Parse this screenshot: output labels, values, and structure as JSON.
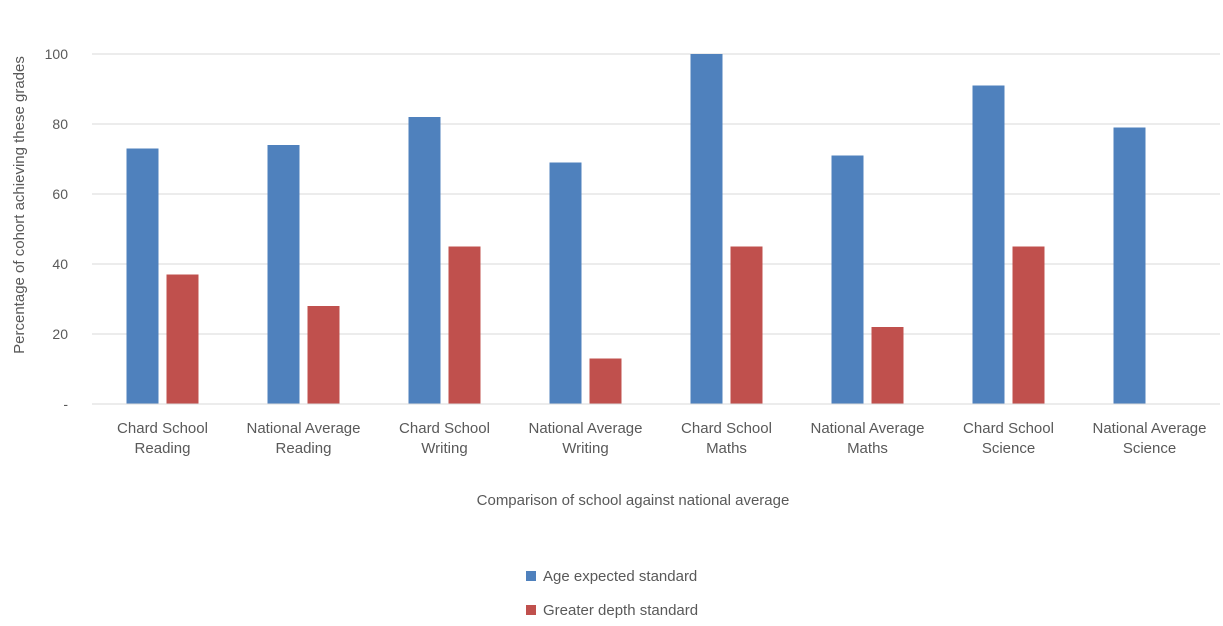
{
  "chart_data": {
    "type": "bar",
    "categories": [
      [
        "Chard School",
        "Reading"
      ],
      [
        "National Average",
        "Reading"
      ],
      [
        "Chard School",
        "Writing"
      ],
      [
        "National Average",
        "Writing"
      ],
      [
        "Chard School",
        "Maths"
      ],
      [
        "National Average",
        "Maths"
      ],
      [
        "Chard School",
        "Science"
      ],
      [
        "National Average",
        "Science"
      ]
    ],
    "series": [
      {
        "name": "Age expected standard",
        "color": "#4F81BD",
        "values": [
          73,
          74,
          82,
          69,
          100,
          71,
          91,
          79
        ]
      },
      {
        "name": "Greater depth standard",
        "color": "#C0504D",
        "values": [
          37,
          28,
          45,
          13,
          45,
          22,
          45,
          null
        ]
      }
    ],
    "xlabel": "Comparison of school against national average",
    "ylabel": "Percentage of cohort achieving these grades",
    "ylim": [
      0,
      100
    ],
    "yticks": [
      0,
      20,
      40,
      60,
      80,
      100
    ],
    "ytick_labels": [
      "-",
      "20",
      "40",
      "60",
      "80",
      "100"
    ],
    "grid": true,
    "legend_position": "bottom"
  }
}
